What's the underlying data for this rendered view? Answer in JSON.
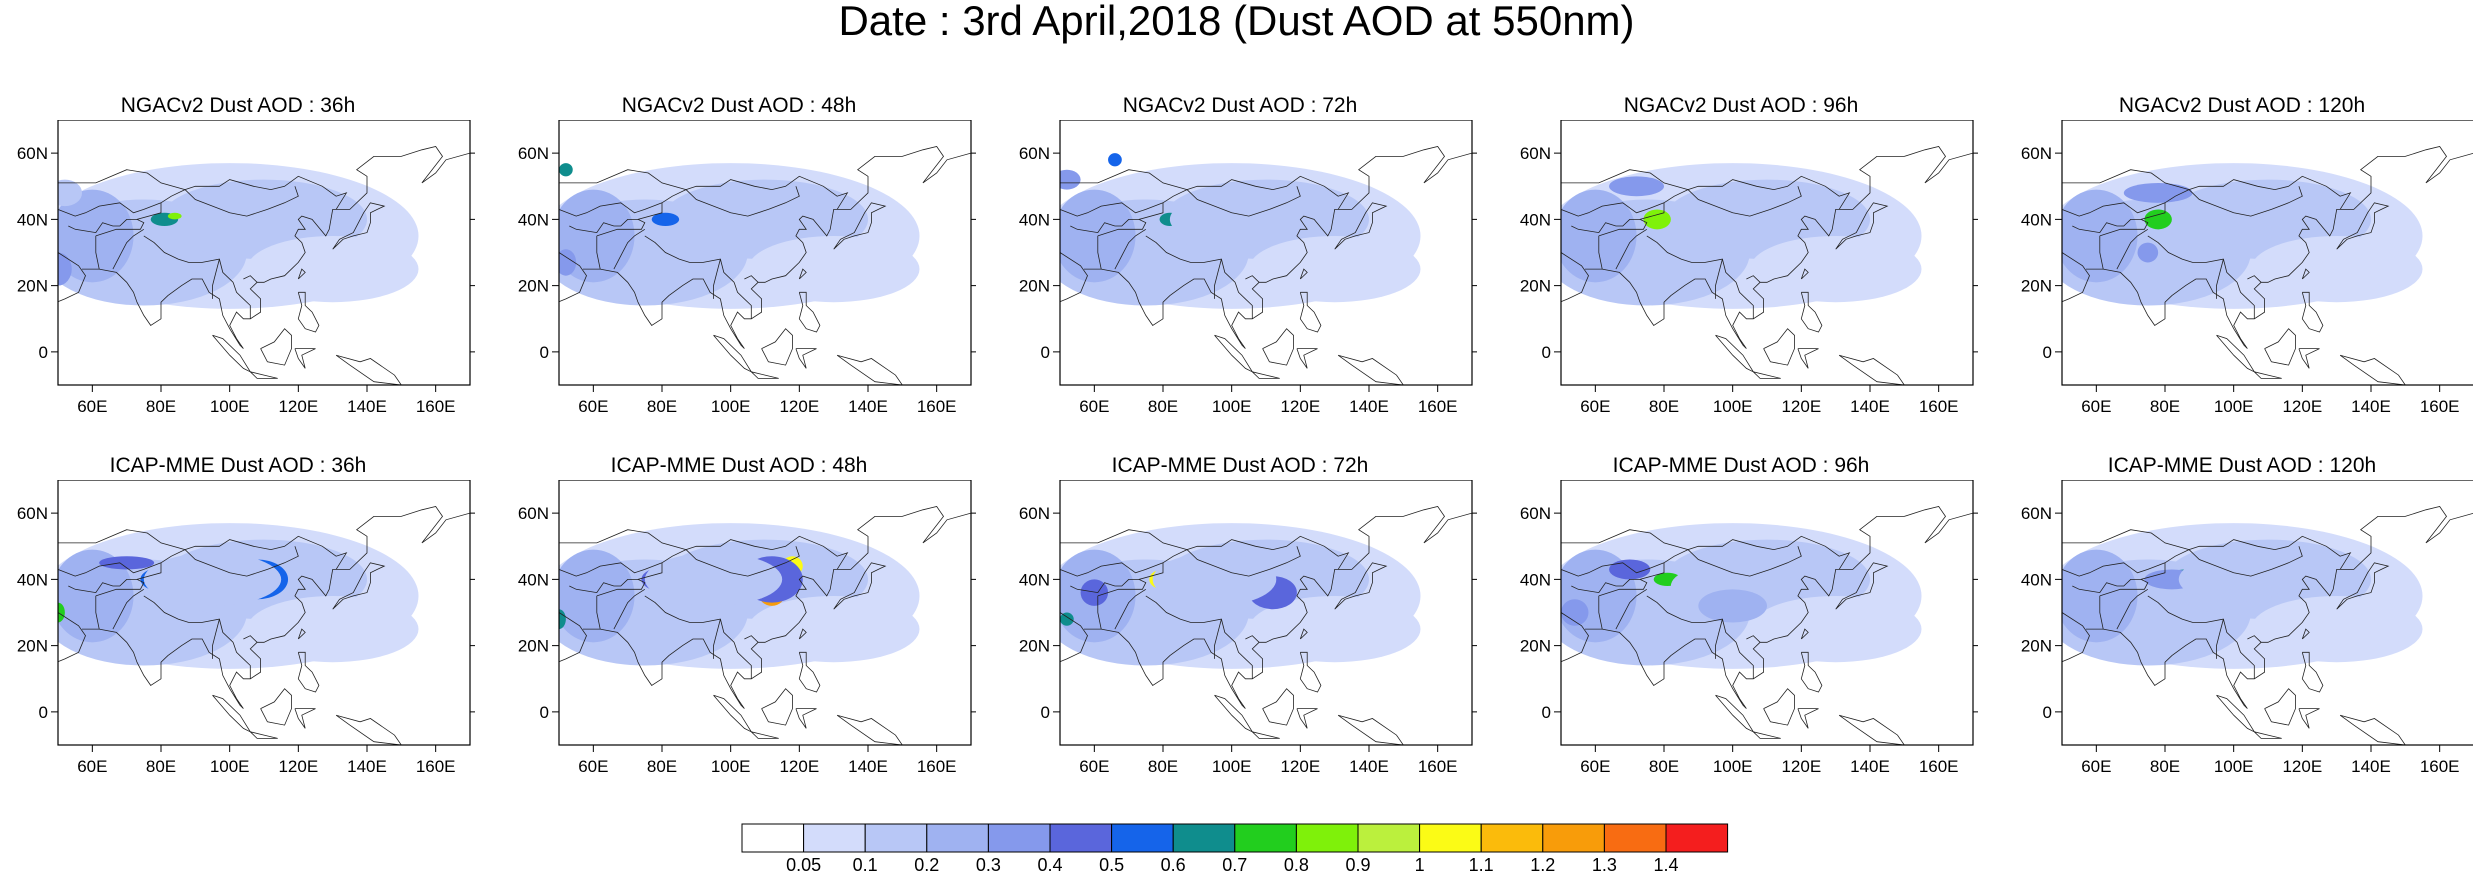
{
  "title": "Date : 3rd April,2018 (Dust AOD at 550nm)",
  "panels": [
    {
      "title": "NGACv2 Dust AOD : 36h",
      "blobs": [
        [
          81,
          40,
          4,
          2,
          7
        ],
        [
          84,
          41,
          2,
          1,
          9
        ],
        [
          50,
          25,
          4,
          5,
          4
        ],
        [
          62,
          42,
          3,
          3,
          3
        ],
        [
          52,
          48,
          5,
          4,
          2
        ]
      ]
    },
    {
      "title": "NGACv2 Dust AOD : 48h",
      "blobs": [
        [
          81,
          40,
          4,
          2,
          6
        ],
        [
          52,
          55,
          2,
          2,
          7
        ],
        [
          52,
          27,
          3,
          4,
          4
        ],
        [
          66,
          38,
          4,
          3,
          3
        ],
        [
          95,
          40,
          8,
          4,
          2
        ]
      ]
    },
    {
      "title": "NGACv2 Dust AOD : 72h",
      "blobs": [
        [
          82,
          40,
          3,
          2,
          7
        ],
        [
          52,
          52,
          4,
          3,
          4
        ],
        [
          66,
          58,
          2,
          2,
          6
        ],
        [
          60,
          40,
          5,
          4,
          3
        ],
        [
          90,
          40,
          8,
          5,
          2
        ]
      ]
    },
    {
      "title": "NGACv2 Dust AOD : 96h",
      "blobs": [
        [
          78,
          40,
          2,
          2,
          14
        ],
        [
          78,
          40,
          4,
          3,
          9
        ],
        [
          72,
          50,
          8,
          3,
          4
        ],
        [
          54,
          28,
          4,
          3,
          3
        ],
        [
          95,
          42,
          10,
          5,
          2
        ]
      ]
    },
    {
      "title": "NGACv2 Dust AOD : 120h",
      "blobs": [
        [
          78,
          40,
          2,
          2,
          12
        ],
        [
          78,
          40,
          4,
          3,
          8
        ],
        [
          78,
          48,
          10,
          3,
          4
        ],
        [
          75,
          30,
          3,
          3,
          4
        ],
        [
          100,
          40,
          10,
          5,
          2
        ]
      ]
    },
    {
      "title": "ICAP-MME Dust AOD : 36h",
      "blobs": [
        [
          80,
          40,
          4,
          3,
          13
        ],
        [
          108,
          40,
          5,
          4,
          14
        ],
        [
          108,
          40,
          9,
          6,
          6
        ],
        [
          82,
          40,
          8,
          4,
          6
        ],
        [
          50,
          30,
          2,
          3,
          8
        ],
        [
          70,
          45,
          8,
          2,
          5
        ],
        [
          95,
          40,
          20,
          8,
          2
        ]
      ]
    },
    {
      "title": "ICAP-MME Dust AOD : 48h",
      "blobs": [
        [
          82,
          40,
          4,
          2,
          12
        ],
        [
          112,
          36,
          4,
          4,
          13
        ],
        [
          118,
          44,
          3,
          3,
          11
        ],
        [
          112,
          40,
          9,
          7,
          5
        ],
        [
          82,
          40,
          8,
          4,
          5
        ],
        [
          50,
          28,
          2,
          3,
          7
        ],
        [
          95,
          40,
          20,
          8,
          2
        ]
      ]
    },
    {
      "title": "ICAP-MME Dust AOD : 72h",
      "blobs": [
        [
          80,
          40,
          4,
          3,
          11
        ],
        [
          112,
          37,
          3,
          2,
          9
        ],
        [
          112,
          36,
          7,
          5,
          5
        ],
        [
          52,
          28,
          2,
          2,
          7
        ],
        [
          60,
          36,
          4,
          4,
          5
        ],
        [
          95,
          40,
          18,
          8,
          2
        ]
      ]
    },
    {
      "title": "ICAP-MME Dust AOD : 96h",
      "blobs": [
        [
          81,
          40,
          4,
          2,
          8
        ],
        [
          70,
          43,
          6,
          3,
          5
        ],
        [
          54,
          30,
          4,
          4,
          4
        ],
        [
          100,
          38,
          18,
          7,
          2
        ],
        [
          100,
          32,
          10,
          5,
          3
        ]
      ]
    },
    {
      "title": "ICAP-MME Dust AOD : 120h",
      "blobs": [
        [
          86,
          41,
          5,
          2,
          7
        ],
        [
          82,
          40,
          8,
          3,
          4
        ],
        [
          60,
          30,
          5,
          5,
          3
        ],
        [
          100,
          40,
          16,
          7,
          2
        ]
      ]
    }
  ],
  "map": {
    "lon_range": [
      50,
      170
    ],
    "lat_range": [
      -10,
      70
    ],
    "lon_ticks": [
      "60E",
      "80E",
      "100E",
      "120E",
      "140E",
      "160E"
    ],
    "lat_ticks": [
      "60N",
      "40N",
      "20N",
      "0"
    ]
  },
  "colorbar": {
    "labels": [
      "0.05",
      "0.1",
      "0.2",
      "0.3",
      "0.4",
      "0.5",
      "0.6",
      "0.7",
      "0.8",
      "0.9",
      "1",
      "1.1",
      "1.2",
      "1.3",
      "1.4"
    ],
    "colors": [
      "#ffffff",
      "#d3dcfb",
      "#b8c7f6",
      "#9fb2f1",
      "#8599ec",
      "#5a66dc",
      "#1564ea",
      "#0f8d8d",
      "#22ce1e",
      "#7ff10a",
      "#bbf03d",
      "#fbfb16",
      "#fbbb0b",
      "#f89c0a",
      "#f86c12",
      "#f41e1e"
    ]
  }
}
